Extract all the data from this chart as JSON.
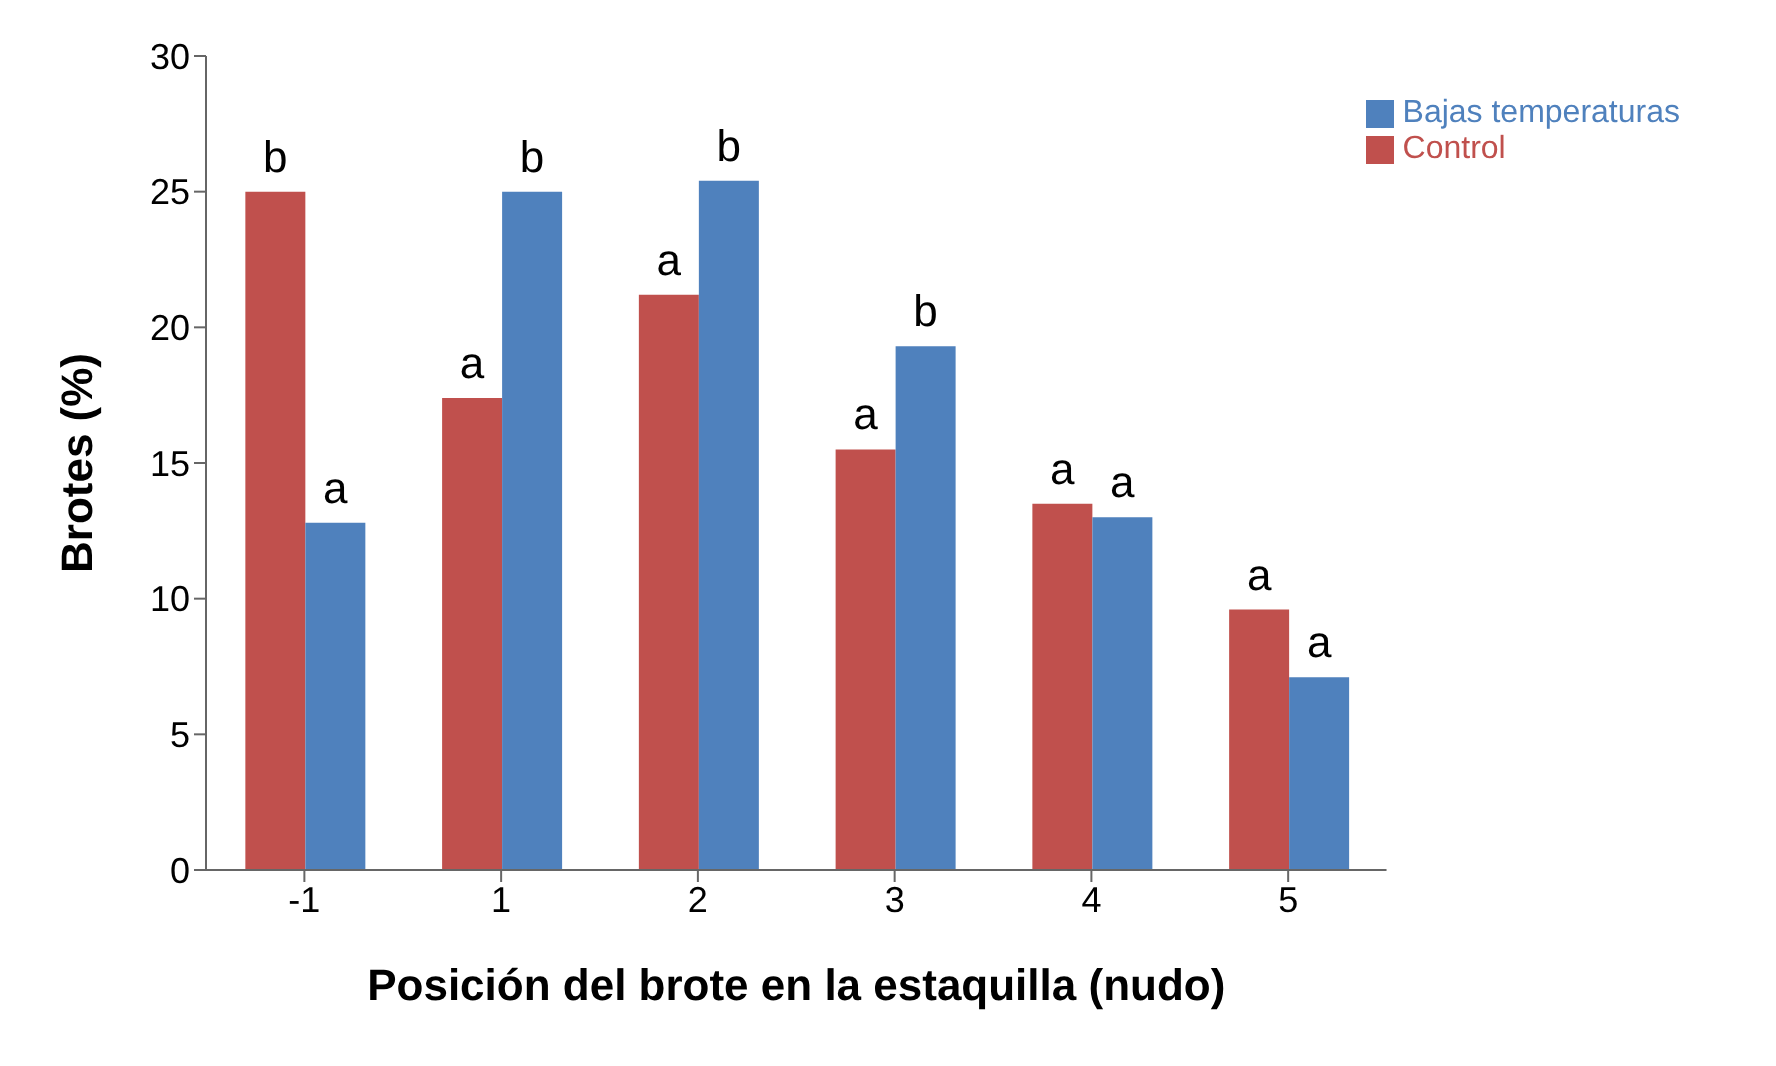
{
  "chart_data": {
    "type": "bar",
    "xlabel": "Posición del brote en la estaquilla (nudo)",
    "ylabel": "Brotes (%)",
    "categories": [
      "-1",
      "1",
      "2",
      "3",
      "4",
      "5"
    ],
    "series": [
      {
        "name": "Control",
        "color": "#c0504d",
        "values": [
          25,
          17.4,
          21.2,
          15.5,
          13.5,
          9.6
        ]
      },
      {
        "name": "Bajas temperaturas",
        "color": "#4f81bd",
        "values": [
          12.8,
          25,
          25.4,
          19.3,
          13,
          7.1
        ]
      }
    ],
    "ylim": [
      0,
      30
    ],
    "yticks": [
      0,
      5,
      10,
      15,
      20,
      25,
      30
    ],
    "grid": false,
    "legend": "top right",
    "annotations": [
      {
        "text": "b",
        "x": "-1",
        "y": 25
      },
      {
        "text": "a",
        "x": "-1",
        "y": 12.8
      },
      {
        "text": "a",
        "x": "1",
        "y": 17.4
      },
      {
        "text": "b",
        "x": "1",
        "y": 25
      },
      {
        "text": "a",
        "x": "2",
        "y": 21.2
      },
      {
        "text": "b",
        "x": "2",
        "y": 25.4
      },
      {
        "text": "a",
        "x": "3",
        "y": 15.5
      },
      {
        "text": "b",
        "x": "3",
        "y": 19.3
      },
      {
        "text": "a",
        "x": "4",
        "y": 13.5
      },
      {
        "text": "a",
        "x": "4",
        "y": 13
      },
      {
        "text": "a",
        "x": "5",
        "y": 9.6
      },
      {
        "text": "a",
        "x": "5",
        "y": 7.1
      }
    ]
  }
}
